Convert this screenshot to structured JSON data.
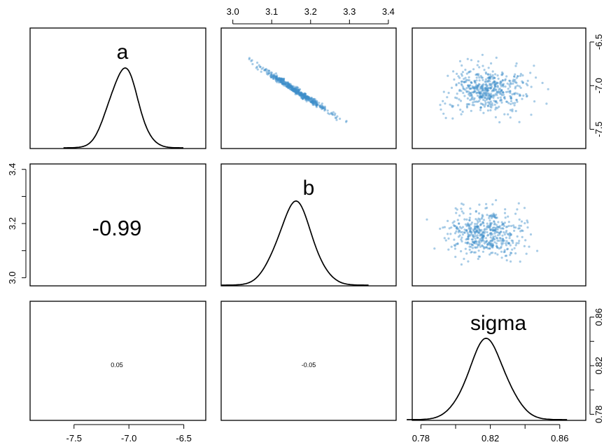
{
  "chart_data": {
    "type": "scatter",
    "title": "",
    "layout": "pairs-matrix",
    "grid": false,
    "parameters": [
      {
        "name": "a",
        "mean": -7.05,
        "sd": 0.13,
        "range": [
          -7.9,
          -6.3
        ],
        "ticks": [
          -7.5,
          -7.0,
          -6.5
        ],
        "tick_labels": [
          "-7.5",
          "-7.0",
          "-6.5"
        ]
      },
      {
        "name": "b",
        "mean": 3.16,
        "sd": 0.045,
        "range": [
          2.97,
          3.42
        ],
        "ticks": [
          3.0,
          3.1,
          3.2,
          3.3,
          3.4
        ],
        "tick_labels": [
          "3.0",
          "3.1",
          "3.2",
          "3.3",
          "3.4"
        ],
        "left_ticks": [
          3.0,
          3.2,
          3.4
        ],
        "left_labels": [
          "3.0",
          "3.2",
          "3.4"
        ]
      },
      {
        "name": "sigma",
        "mean": 0.818,
        "sd": 0.011,
        "range": [
          0.775,
          0.875
        ],
        "ticks": [
          0.78,
          0.82,
          0.86
        ],
        "tick_labels": [
          "0.78",
          "0.82",
          "0.86"
        ],
        "minor_ticks": [
          0.8,
          0.84
        ]
      }
    ],
    "a_right_axis": {
      "range": [
        -7.72,
        -6.34
      ],
      "ticks": [
        -7.5,
        -7.0,
        -6.5
      ],
      "tick_labels": [
        "-7.5",
        "-7.0",
        "-6.5"
      ]
    },
    "sigma_right_axis": {
      "range": [
        0.775,
        0.873
      ],
      "ticks": [
        0.78,
        0.82,
        0.86
      ],
      "tick_labels": [
        "0.78",
        "0.82",
        "0.86"
      ],
      "minor_ticks": [
        0.8,
        0.84
      ]
    },
    "correlations": [
      {
        "row": "b",
        "col": "a",
        "value": -0.99,
        "label": "-0.99"
      },
      {
        "row": "sigma",
        "col": "a",
        "value": 0.05,
        "label": "0.05"
      },
      {
        "row": "sigma",
        "col": "b",
        "value": -0.05,
        "label": "-0.05"
      }
    ],
    "scatter_panels": [
      {
        "x": "b",
        "y": "a",
        "correlation": -0.99
      },
      {
        "x": "sigma",
        "y": "a",
        "correlation": 0.05
      },
      {
        "x": "sigma",
        "y": "b",
        "correlation": -0.05
      }
    ],
    "point_color": "#3d8ec9",
    "curve_color": "#000000",
    "samples_per_panel": 500
  }
}
